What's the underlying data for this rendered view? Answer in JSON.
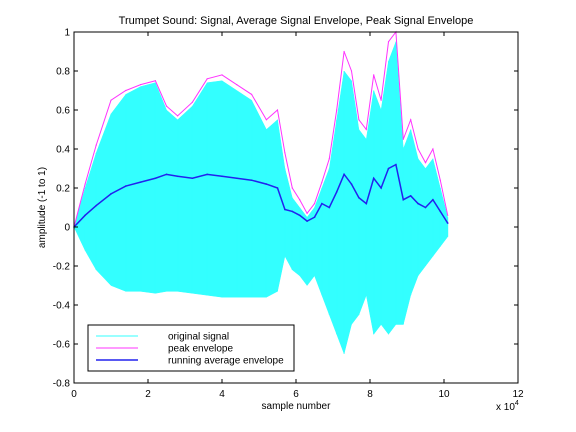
{
  "chart_data": {
    "type": "line",
    "title": "Trumpet Sound: Signal, Average Signal Envelope, Peak Signal Envelope",
    "xlabel": "sample number",
    "ylabel": "amplitude (-1 to 1)",
    "x_exponent_label": "x 10",
    "x_exponent_power": "4",
    "xlim": [
      0,
      12
    ],
    "ylim": [
      -0.8,
      1
    ],
    "xticks": [
      "0",
      "2",
      "4",
      "6",
      "8",
      "10",
      "12"
    ],
    "yticks": [
      "-0.8",
      "-0.6",
      "-0.4",
      "-0.2",
      "0",
      "0.2",
      "0.4",
      "0.6",
      "0.8",
      "1"
    ],
    "grid": false,
    "legend_position": "bottom-left",
    "series": [
      {
        "name": "original signal",
        "color": "#33ffff",
        "x": [
          0,
          0.3,
          0.6,
          1.0,
          1.4,
          1.8,
          2.2,
          2.5,
          2.8,
          3.2,
          3.6,
          4.0,
          4.4,
          4.8,
          5.2,
          5.5,
          5.7,
          5.9,
          6.1,
          6.3,
          6.5,
          6.7,
          6.9,
          7.1,
          7.3,
          7.5,
          7.7,
          7.9,
          8.1,
          8.3,
          8.5,
          8.7,
          8.9,
          9.1,
          9.3,
          9.5,
          9.7,
          9.9,
          10.1
        ],
        "y_max": [
          0,
          0.2,
          0.38,
          0.58,
          0.68,
          0.72,
          0.74,
          0.6,
          0.55,
          0.62,
          0.74,
          0.75,
          0.7,
          0.65,
          0.5,
          0.55,
          0.3,
          0.15,
          0.1,
          0.05,
          0.1,
          0.2,
          0.3,
          0.55,
          0.8,
          0.75,
          0.5,
          0.45,
          0.7,
          0.6,
          0.85,
          0.95,
          0.4,
          0.5,
          0.35,
          0.3,
          0.35,
          0.2,
          0.05
        ],
        "y_min": [
          0,
          -0.12,
          -0.22,
          -0.3,
          -0.33,
          -0.33,
          -0.34,
          -0.33,
          -0.33,
          -0.34,
          -0.35,
          -0.36,
          -0.36,
          -0.36,
          -0.36,
          -0.33,
          -0.15,
          -0.22,
          -0.25,
          -0.3,
          -0.25,
          -0.35,
          -0.45,
          -0.55,
          -0.65,
          -0.5,
          -0.45,
          -0.35,
          -0.55,
          -0.5,
          -0.55,
          -0.5,
          -0.5,
          -0.35,
          -0.25,
          -0.2,
          -0.15,
          -0.1,
          -0.05
        ]
      },
      {
        "name": "peak envelope",
        "color": "#ff33ff",
        "x": [
          0,
          0.3,
          0.6,
          1.0,
          1.4,
          1.8,
          2.2,
          2.5,
          2.8,
          3.2,
          3.6,
          4.0,
          4.4,
          4.8,
          5.2,
          5.5,
          5.7,
          5.9,
          6.1,
          6.3,
          6.5,
          6.7,
          6.9,
          7.1,
          7.3,
          7.5,
          7.7,
          7.9,
          8.1,
          8.3,
          8.5,
          8.7,
          8.9,
          9.1,
          9.3,
          9.5,
          9.7,
          9.9,
          10.1
        ],
        "y": [
          0,
          0.22,
          0.42,
          0.65,
          0.7,
          0.73,
          0.75,
          0.62,
          0.57,
          0.64,
          0.76,
          0.78,
          0.73,
          0.68,
          0.55,
          0.6,
          0.38,
          0.2,
          0.14,
          0.07,
          0.12,
          0.23,
          0.35,
          0.6,
          0.9,
          0.8,
          0.55,
          0.5,
          0.78,
          0.65,
          0.95,
          1.0,
          0.45,
          0.55,
          0.4,
          0.33,
          0.4,
          0.24,
          0.06
        ]
      },
      {
        "name": "running average envelope",
        "color": "#2222ee",
        "x": [
          0,
          0.3,
          0.6,
          1.0,
          1.4,
          1.8,
          2.2,
          2.5,
          2.8,
          3.2,
          3.6,
          4.0,
          4.4,
          4.8,
          5.2,
          5.5,
          5.7,
          5.9,
          6.1,
          6.3,
          6.5,
          6.7,
          6.9,
          7.1,
          7.3,
          7.5,
          7.7,
          7.9,
          8.1,
          8.3,
          8.5,
          8.7,
          8.9,
          9.1,
          9.3,
          9.5,
          9.7,
          9.9,
          10.1
        ],
        "y": [
          0,
          0.06,
          0.11,
          0.17,
          0.21,
          0.23,
          0.25,
          0.27,
          0.26,
          0.25,
          0.27,
          0.26,
          0.25,
          0.24,
          0.22,
          0.2,
          0.09,
          0.08,
          0.06,
          0.03,
          0.05,
          0.12,
          0.1,
          0.18,
          0.27,
          0.22,
          0.15,
          0.12,
          0.25,
          0.2,
          0.3,
          0.32,
          0.14,
          0.16,
          0.12,
          0.1,
          0.14,
          0.08,
          0.02
        ]
      }
    ]
  }
}
